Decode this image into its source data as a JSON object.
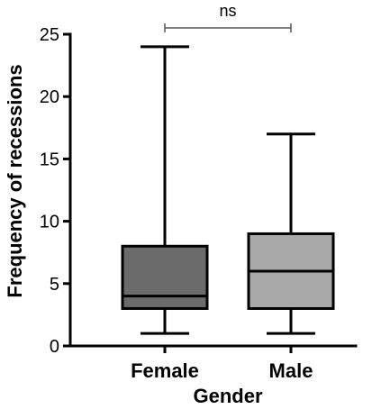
{
  "chart_data": {
    "type": "box",
    "xlabel": "Gender",
    "ylabel": "Frequency of recessions",
    "ylim": [
      0,
      25
    ],
    "yticks": [
      0,
      5,
      10,
      15,
      20,
      25
    ],
    "categories": [
      "Female",
      "Male"
    ],
    "boxes": [
      {
        "category": "Female",
        "min": 1,
        "q1": 3,
        "median": 4,
        "q3": 8,
        "max": 24,
        "color": "#6b6b6b"
      },
      {
        "category": "Male",
        "min": 1,
        "q1": 3,
        "median": 6,
        "q3": 9,
        "max": 17,
        "color": "#a9a9a9"
      }
    ],
    "significance": {
      "between": [
        "Female",
        "Male"
      ],
      "label": "ns"
    },
    "grid": false
  }
}
